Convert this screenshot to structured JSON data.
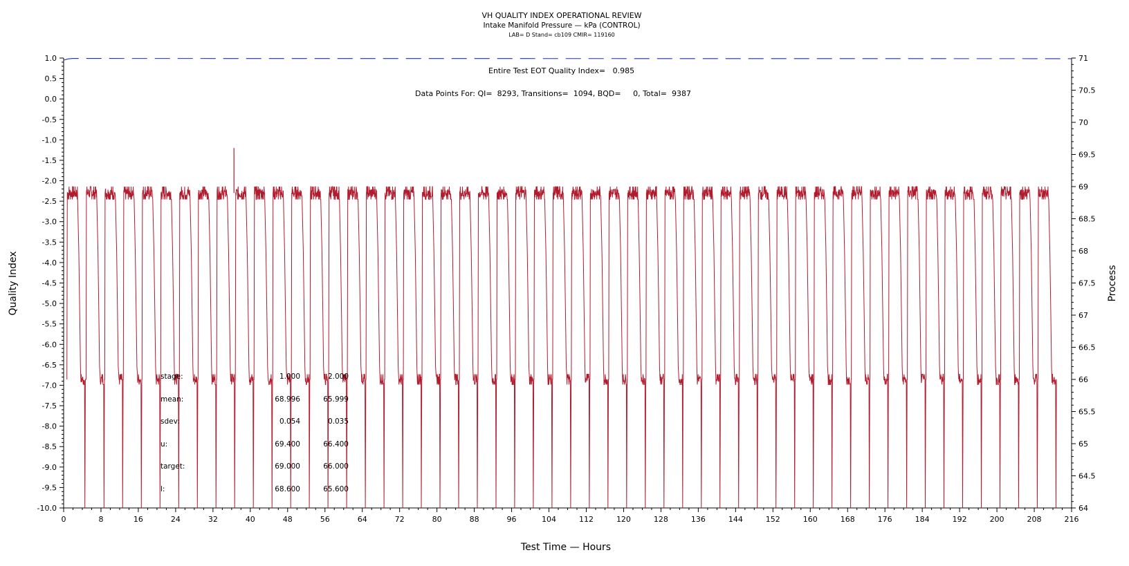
{
  "titles": {
    "main": "VH QUALITY INDEX OPERATIONAL REVIEW",
    "sub": "Intake Manifold Pressure — kPa (CONTROL)",
    "small": "LAB= D Stand= cb109 CMIR= 119160"
  },
  "info": {
    "quality_line": "Entire Test EOT Quality Index=   0.985",
    "points_line": "Data Points For: QI=  8293, Transitions=  1094, BQD=     0, Total=  9387"
  },
  "stats": {
    "rows": [
      {
        "label": "stage:",
        "s1": "1.000",
        "s2": "2.000"
      },
      {
        "label": "mean:",
        "s1": "68.996",
        "s2": "65.999"
      },
      {
        "label": "sdev:",
        "s1": "0.054",
        "s2": "0.035"
      },
      {
        "label": "u:",
        "s1": "69.400",
        "s2": "66.400"
      },
      {
        "label": "target:",
        "s1": "69.000",
        "s2": "66.000"
      },
      {
        "label": "l:",
        "s1": "68.600",
        "s2": "65.600"
      }
    ]
  },
  "chart_data": {
    "type": "line",
    "xlabel": "Test Time — Hours",
    "ylabel_left": "Quality Index",
    "ylabel_right": "Process",
    "xlim": [
      0,
      216
    ],
    "ylim_left": [
      -10,
      1
    ],
    "ylim_right": [
      64,
      71
    ],
    "x_ticks": [
      0,
      8,
      16,
      24,
      32,
      40,
      48,
      56,
      64,
      72,
      80,
      88,
      96,
      104,
      112,
      120,
      128,
      136,
      144,
      152,
      160,
      168,
      176,
      184,
      192,
      200,
      208,
      216
    ],
    "y_left_ticks": [
      "1.0",
      "0.5",
      "0.0",
      "-0.5",
      "-1.0",
      "-1.5",
      "-2.0",
      "-2.5",
      "-3.0",
      "-3.5",
      "-4.0",
      "-4.5",
      "-5.0",
      "-5.5",
      "-6.0",
      "-6.5",
      "-7.0",
      "-7.5",
      "-8.0",
      "-8.5",
      "-9.0",
      "-9.5",
      "-10.0"
    ],
    "y_right_ticks": [
      "71",
      "70.5",
      "70",
      "69.5",
      "69",
      "68.5",
      "68",
      "67.5",
      "67",
      "66.5",
      "66",
      "65.5",
      "65",
      "64.5",
      "64"
    ],
    "series": [
      {
        "axis": "right",
        "color": "#b01c2e",
        "cycle_start_hours": [
          0.7,
          4.8,
          8.8,
          12.8,
          16.8,
          20.8,
          24.8,
          28.8,
          32.8,
          36.8,
          40.8,
          44.8,
          48.8,
          52.8,
          56.8,
          60.8,
          64.8,
          68.8,
          72.8,
          76.8,
          80.8,
          84.8,
          88.8,
          92.8,
          96.8,
          100.8,
          104.8,
          108.8,
          112.8,
          116.8,
          120.8,
          124.8,
          128.8,
          132.8,
          136.8,
          140.8,
          144.8,
          148.8,
          152.8,
          156.8,
          160.8,
          164.8,
          168.8,
          172.8,
          176.8,
          180.8,
          184.8,
          188.8,
          192.8,
          196.8,
          200.8,
          204.8,
          208.8
        ],
        "high_level": 69.0,
        "low_level": 66.0,
        "floor_level": 64.0,
        "spike": {
          "x": 36.5,
          "y": 69.6
        }
      },
      {
        "axis": "left",
        "color": "#1c2ea8",
        "style": "dashed",
        "x": [
          0,
          1,
          2,
          3,
          216
        ],
        "y": [
          0.95,
          0.98,
          0.99,
          0.99,
          0.985
        ]
      }
    ]
  }
}
